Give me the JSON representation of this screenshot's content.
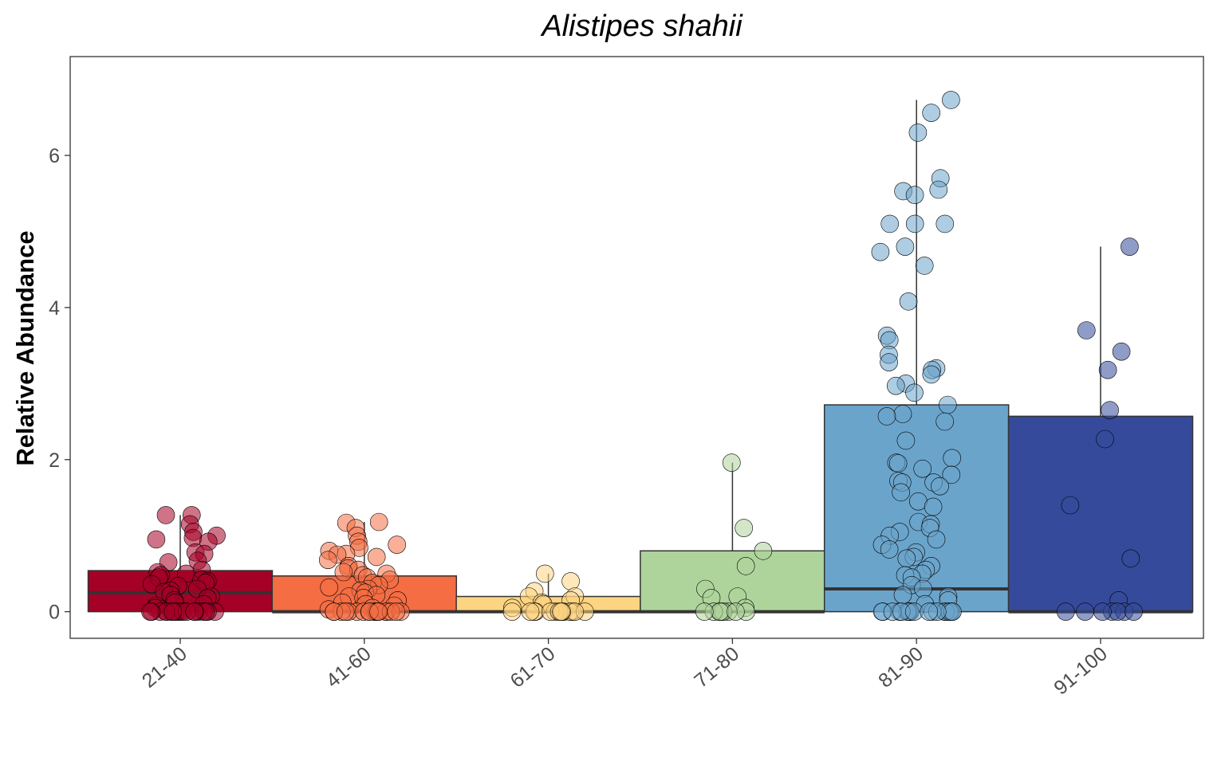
{
  "chart_data": {
    "type": "box",
    "title": "Alistipes shahii",
    "xlabel": "",
    "ylabel": "Relative Abundance",
    "ylim": [
      -0.35,
      7.3
    ],
    "yticks": [
      0,
      2,
      4,
      6
    ],
    "grid": false,
    "legend": "none",
    "categories": [
      "21-40",
      "41-60",
      "61-70",
      "71-80",
      "81-90",
      "91-100"
    ],
    "groups": [
      {
        "label": "21-40",
        "fill": "#a50026",
        "box": {
          "q1": 0.0,
          "median": 0.25,
          "q3": 0.54,
          "whisker_low": 0.0,
          "whisker_high": 1.27
        },
        "points": [
          1.27,
          1.27,
          1.15,
          1.0,
          1.05,
          0.97,
          0.95,
          0.92,
          0.78,
          0.76,
          0.67,
          0.65,
          0.55,
          0.52,
          0.5,
          0.48,
          0.45,
          0.42,
          0.4,
          0.38,
          0.36,
          0.34,
          0.3,
          0.28,
          0.26,
          0.22,
          0.2,
          0.18,
          0.15,
          0.12,
          0.1,
          0.08,
          0.05,
          0,
          0,
          0,
          0,
          0,
          0,
          0,
          0,
          0,
          0,
          0,
          0,
          0,
          0,
          0,
          0,
          0,
          0,
          0
        ]
      },
      {
        "label": "41-60",
        "fill": "#f46d43",
        "box": {
          "q1": 0.0,
          "median": 0.0,
          "q3": 0.47,
          "whisker_low": 0.0,
          "whisker_high": 1.18
        },
        "points": [
          1.18,
          1.17,
          1.1,
          1.0,
          0.92,
          0.88,
          0.84,
          0.8,
          0.76,
          0.75,
          0.72,
          0.68,
          0.6,
          0.57,
          0.55,
          0.52,
          0.5,
          0.48,
          0.45,
          0.42,
          0.38,
          0.35,
          0.32,
          0.3,
          0.28,
          0.25,
          0.22,
          0.2,
          0.18,
          0.15,
          0.12,
          0.1,
          0.08,
          0.05,
          0.03,
          0,
          0,
          0,
          0,
          0,
          0,
          0,
          0,
          0,
          0,
          0,
          0,
          0,
          0,
          0,
          0,
          0,
          0,
          0
        ]
      },
      {
        "label": "61-70",
        "fill": "#fdd481",
        "box": {
          "q1": 0.0,
          "median": 0.0,
          "q3": 0.2,
          "whisker_low": 0.0,
          "whisker_high": 0.5
        },
        "points": [
          0.5,
          0.4,
          0.27,
          0.2,
          0.2,
          0.15,
          0.12,
          0.1,
          0.05,
          0,
          0,
          0,
          0,
          0,
          0,
          0,
          0,
          0,
          0,
          0,
          0,
          0,
          0
        ]
      },
      {
        "label": "71-80",
        "fill": "#aed49b",
        "box": {
          "q1": 0.0,
          "median": 0.0,
          "q3": 0.8,
          "whisker_low": 0.0,
          "whisker_high": 1.96
        },
        "points": [
          1.96,
          1.1,
          0.8,
          0.6,
          0.3,
          0.2,
          0.18,
          0.05,
          0,
          0,
          0,
          0,
          0,
          0,
          0,
          0,
          0
        ]
      },
      {
        "label": "81-90",
        "fill": "#6ba4cb",
        "box": {
          "q1": 0.0,
          "median": 0.3,
          "q3": 2.72,
          "whisker_low": 0.0,
          "whisker_high": 6.73
        },
        "points": [
          6.73,
          6.56,
          6.3,
          5.7,
          5.55,
          5.53,
          5.48,
          5.1,
          5.1,
          5.1,
          4.8,
          4.73,
          4.55,
          4.08,
          3.63,
          3.57,
          3.38,
          3.28,
          3.2,
          3.18,
          3.12,
          3.0,
          2.97,
          2.88,
          2.72,
          2.6,
          2.57,
          2.5,
          2.25,
          2.02,
          1.96,
          1.95,
          1.88,
          1.8,
          1.72,
          1.7,
          1.7,
          1.65,
          1.57,
          1.45,
          1.38,
          1.18,
          1.15,
          1.1,
          1.05,
          1.0,
          0.95,
          0.88,
          0.82,
          0.78,
          0.72,
          0.7,
          0.6,
          0.55,
          0.5,
          0.48,
          0.45,
          0.35,
          0.3,
          0.22,
          0.2,
          0.15,
          0.1,
          0,
          0,
          0,
          0,
          0,
          0,
          0,
          0,
          0,
          0,
          0,
          0,
          0,
          0,
          0,
          0,
          0,
          0,
          0,
          0
        ]
      },
      {
        "label": "91-100",
        "fill": "#354a9a",
        "box": {
          "q1": 0.0,
          "median": 0.0,
          "q3": 2.57,
          "whisker_low": 0.0,
          "whisker_high": 4.8
        },
        "points": [
          4.8,
          3.7,
          3.42,
          3.18,
          2.65,
          2.27,
          1.4,
          0.7,
          0.15,
          0,
          0,
          0,
          0,
          0,
          0,
          0
        ]
      }
    ]
  }
}
